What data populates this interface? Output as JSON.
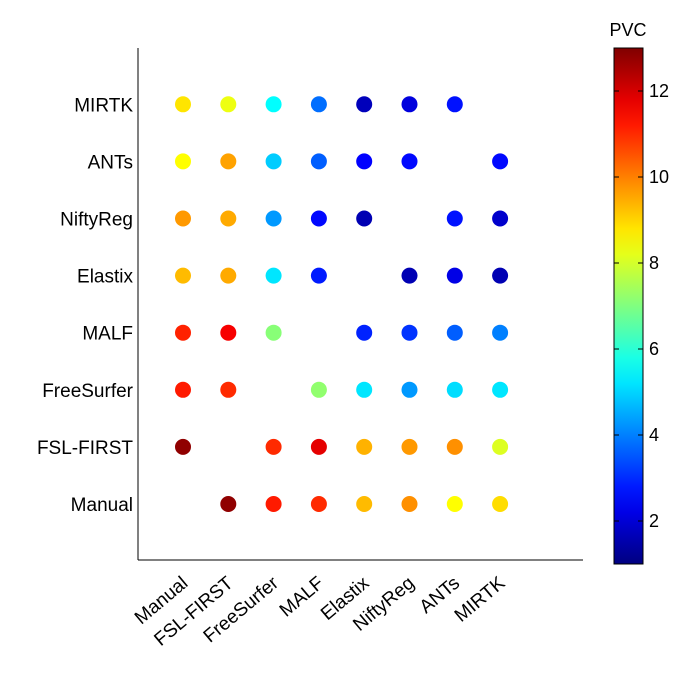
{
  "chart_data": {
    "type": "scatter",
    "title": "",
    "xlabel": "",
    "ylabel": "",
    "x_categories": [
      "Manual",
      "FSL-FIRST",
      "FreeSurfer",
      "MALF",
      "Elastix",
      "NiftyReg",
      "ANTs",
      "MIRTK"
    ],
    "y_categories": [
      "Manual",
      "FSL-FIRST",
      "FreeSurfer",
      "MALF",
      "Elastix",
      "NiftyReg",
      "ANTs",
      "MIRTK"
    ],
    "colorbar": {
      "label": "PVC",
      "min": 1,
      "max": 13,
      "ticks": [
        2,
        4,
        6,
        8,
        10,
        12
      ],
      "colormap": "jet"
    },
    "grid": false,
    "matrix": [
      [
        null,
        12.8,
        11.2,
        11.0,
        9.3,
        9.8,
        8.5,
        8.9
      ],
      [
        12.8,
        null,
        11.0,
        11.8,
        9.4,
        9.7,
        9.8,
        8.1
      ],
      [
        11.2,
        11.0,
        null,
        7.2,
        5.2,
        4.3,
        5.1,
        5.2
      ],
      [
        11.1,
        11.6,
        7.1,
        null,
        2.9,
        3.1,
        3.6,
        4.0
      ],
      [
        9.3,
        9.5,
        5.2,
        2.8,
        null,
        1.6,
        2.2,
        1.6
      ],
      [
        9.7,
        9.5,
        4.3,
        2.6,
        1.6,
        null,
        2.7,
        1.9
      ],
      [
        8.5,
        9.6,
        4.9,
        3.6,
        2.5,
        2.6,
        null,
        2.6
      ],
      [
        8.8,
        8.3,
        5.5,
        3.8,
        1.7,
        2.1,
        2.7,
        null
      ]
    ]
  }
}
